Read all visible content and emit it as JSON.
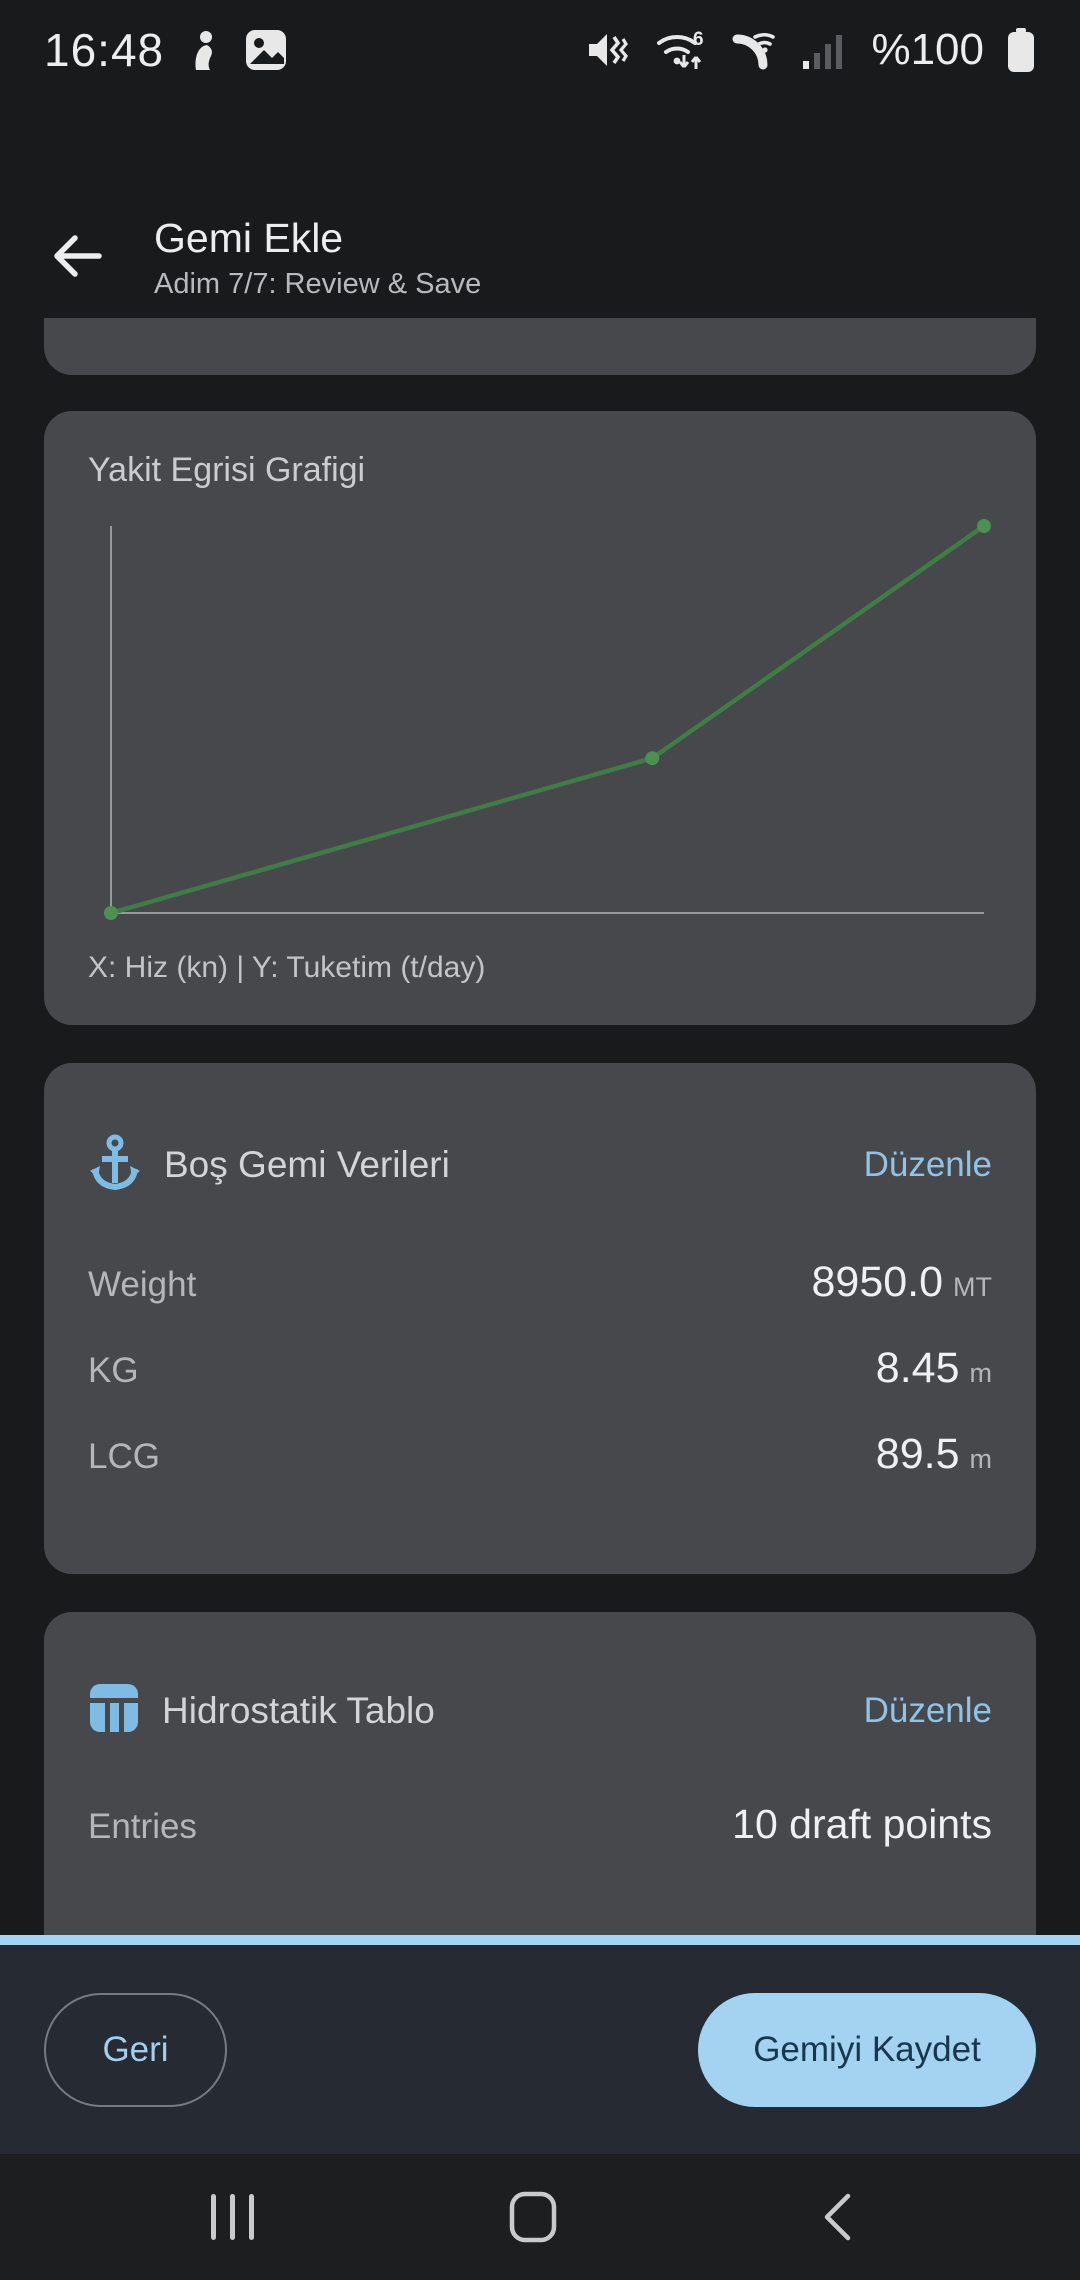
{
  "status_bar": {
    "time": "16:48",
    "battery_text": "%100",
    "left_icons": [
      "person-notification-icon",
      "gallery-icon"
    ],
    "right_icons": [
      "mute-vibrate-icon",
      "wifi6-icon",
      "wifi-calling-icon",
      "signal-icon",
      "battery-icon"
    ]
  },
  "header": {
    "title": "Gemi Ekle",
    "subtitle": "Adim 7/7: Review & Save",
    "back_icon": "back-arrow-icon"
  },
  "chart_card": {
    "title": "Yakit Egrisi Grafigi",
    "axis_caption": "X: Hiz (kn) | Y: Tuketim (t/day)"
  },
  "chart_data": {
    "type": "line",
    "title": "Yakit Egrisi Grafigi",
    "xlabel": "Hiz (kn)",
    "ylabel": "Tuketim (t/day)",
    "tick_labels": "none (axes unlabeled)",
    "axes": "plain L-shaped axes, no grid, no legend",
    "series": [
      {
        "name": "Yakit Egrisi",
        "points_relative": [
          [
            0.0,
            0.0
          ],
          [
            0.62,
            0.4
          ],
          [
            1.0,
            1.0
          ]
        ],
        "note": "3 speed/consumption points rising left-to-right; values not labeled on screen"
      }
    ],
    "line_color": "#3e7d44",
    "point_color": "#4c9152",
    "axis_color": "#97999c"
  },
  "lightship_card": {
    "icon": "anchor-icon",
    "title": "Boş Gemi Verileri",
    "action": "Düzenle",
    "rows": [
      {
        "label": "Weight",
        "value": "8950.0",
        "unit": "MT"
      },
      {
        "label": "KG",
        "value": "8.45",
        "unit": "m"
      },
      {
        "label": "LCG",
        "value": "89.5",
        "unit": "m"
      }
    ]
  },
  "hydrostatic_card": {
    "icon": "table-icon",
    "title": "Hidrostatik Tablo",
    "action": "Düzenle",
    "rows": [
      {
        "label": "Entries",
        "value": "10 draft points"
      }
    ]
  },
  "footer": {
    "back_label": "Geri",
    "save_label": "Gemiyi Kaydet"
  },
  "nav_bar": {
    "icons": [
      "recents-icon",
      "home-icon",
      "back-icon"
    ]
  },
  "colors": {
    "accent_blue": "#a3d4f2",
    "link_blue": "#8fc3e8",
    "card_bg": "#46484b",
    "page_bg": "#191a1c",
    "footer_bg": "#262b33",
    "save_text": "#16374e"
  }
}
